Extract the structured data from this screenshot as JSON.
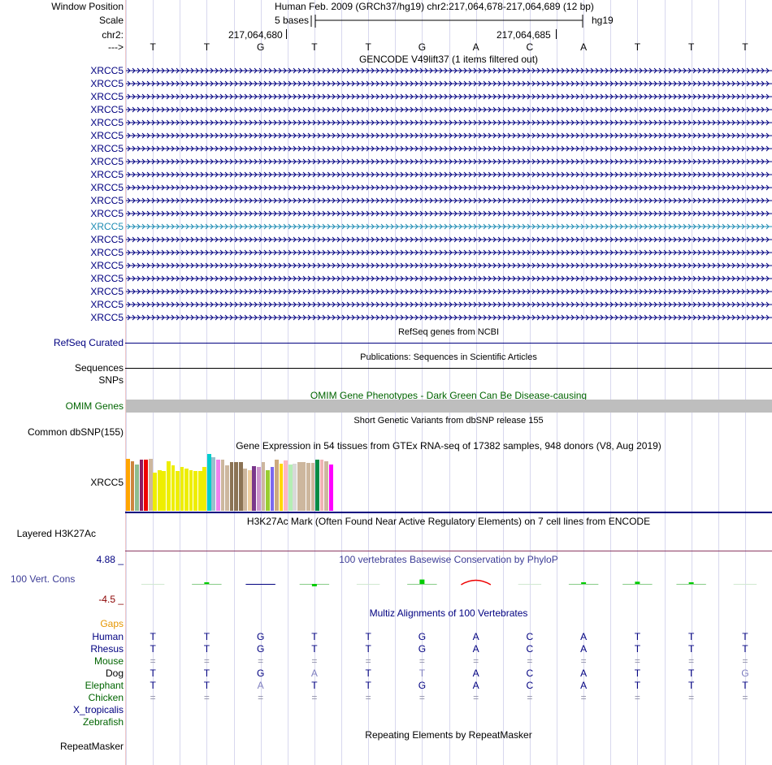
{
  "header": {
    "window_position_label": "Window Position",
    "scale_label": "Scale",
    "chrom_label": "chr2:",
    "strand_label": "--->",
    "assembly_position": "Human Feb. 2009 (GRCh37/hg19)   chr2:217,064,678-217,064,689 (12 bp)",
    "scale_text": "5 bases",
    "scale_assembly": "hg19",
    "coord_1": "217,064,680",
    "coord_2": "217,064,685"
  },
  "bases": [
    "T",
    "T",
    "G",
    "T",
    "T",
    "G",
    "A",
    "C",
    "A",
    "T",
    "T",
    "T"
  ],
  "gencode": {
    "title": "GENCODE V49lift37 (1 items filtered out)",
    "items": [
      "XRCC5",
      "XRCC5",
      "XRCC5",
      "XRCC5",
      "XRCC5",
      "XRCC5",
      "XRCC5",
      "XRCC5",
      "XRCC5",
      "XRCC5",
      "XRCC5",
      "XRCC5",
      "XRCC5",
      "XRCC5",
      "XRCC5",
      "XRCC5",
      "XRCC5",
      "XRCC5",
      "XRCC5",
      "XRCC5"
    ],
    "highlight_index": 12,
    "colors": {
      "normal": "#000080",
      "highlight": "#1e8cb4"
    }
  },
  "refseq": {
    "title": "RefSeq genes from NCBI",
    "label": "RefSeq Curated"
  },
  "publications": {
    "title": "Publications: Sequences in Scientific Articles",
    "label": "Sequences"
  },
  "snps": {
    "label": "SNPs"
  },
  "omim": {
    "title": "OMIM Gene Phenotypes - Dark Green Can Be Disease-causing",
    "label": "OMIM Genes"
  },
  "dbsnp": {
    "title": "Short Genetic Variants from dbSNP release 155",
    "label": "Common dbSNP(155)"
  },
  "gtex": {
    "title": "Gene Expression in 54 tissues from GTEx RNA-seq of 17382 samples, 948 donors (V8, Aug 2019)",
    "label": "XRCC5",
    "chart_data": {
      "type": "bar",
      "values": [
        66,
        63,
        59,
        65,
        65,
        66,
        48,
        51,
        50,
        63,
        58,
        50,
        56,
        53,
        51,
        50,
        50,
        56,
        72,
        68,
        65,
        65,
        58,
        62,
        62,
        62,
        53,
        51,
        57,
        55,
        62,
        51,
        55,
        65,
        60,
        64,
        59,
        60,
        62,
        62,
        61,
        61,
        65,
        65,
        63,
        59
      ],
      "colors": [
        "#ffa500",
        "#cd853f",
        "#8fbc8f",
        "#8b1c62",
        "#ee0000",
        "#cdb79e",
        "#eeee00",
        "#eeee00",
        "#eeee00",
        "#eeee00",
        "#eeee00",
        "#eeee00",
        "#eeee00",
        "#eeee00",
        "#eeee00",
        "#eeee00",
        "#eeee00",
        "#eeee00",
        "#00cdcd",
        "#9ac0cd",
        "#ee82ee",
        "#cdb79e",
        "#cdb79e",
        "#8b7355",
        "#8b7355",
        "#8b7355",
        "#cdb79e",
        "#eecfa1",
        "#7a378b",
        "#cd96cd",
        "#cdb79e",
        "#9acd32",
        "#7b68ee",
        "#cdaa7d",
        "#ffd700",
        "#ffb6c1",
        "#b4eeb4",
        "#d9d9d9",
        "#cdb79e",
        "#cdb79e",
        "#cdb79e",
        "#cdb79e",
        "#008b45",
        "#eeb4b4",
        "#cdb79e",
        "#ff00ff"
      ]
    }
  },
  "h3k27ac": {
    "title": "H3K27Ac Mark (Often Found Near Active Regulatory Elements) on 7 cell lines from ENCODE",
    "label": "Layered H3K27Ac"
  },
  "conservation": {
    "title": "100 vertebrates Basewise Conservation by PhyloP",
    "label": "100 Vert. Cons",
    "max_label": "4.88 _",
    "min_label": "-4.5 _",
    "scores": [
      0,
      0.15,
      -0.1,
      -0.5,
      0,
      0.9,
      -0.05,
      0,
      0.2,
      0.45,
      0.05,
      0
    ],
    "colors": {
      "pos": "#00cc00",
      "neg": "#ee0000",
      "neutral": "#000080"
    }
  },
  "multiz": {
    "title": "Multiz Alignments of 100 Vertebrates",
    "gaps_label": "Gaps",
    "species": [
      {
        "name": "Human",
        "seq": [
          "T",
          "T",
          "G",
          "T",
          "T",
          "G",
          "A",
          "C",
          "A",
          "T",
          "T",
          "T"
        ]
      },
      {
        "name": "Rhesus",
        "seq": [
          "T",
          "T",
          "G",
          "T",
          "T",
          "G",
          "A",
          "C",
          "A",
          "T",
          "T",
          "T"
        ]
      },
      {
        "name": "Mouse",
        "seq": [
          "=",
          "=",
          "=",
          "=",
          "=",
          "=",
          "=",
          "=",
          "=",
          "=",
          "=",
          "="
        ]
      },
      {
        "name": "Dog",
        "seq": [
          "T",
          "T",
          "G",
          "A",
          "T",
          "T",
          "A",
          "C",
          "A",
          "T",
          "T",
          "G"
        ]
      },
      {
        "name": "Elephant",
        "seq": [
          "T",
          "T",
          "A",
          "T",
          "T",
          "G",
          "A",
          "C",
          "A",
          "T",
          "T",
          "T"
        ]
      },
      {
        "name": "Chicken",
        "seq": [
          "=",
          "=",
          "=",
          "=",
          "=",
          "=",
          "=",
          "=",
          "=",
          "=",
          "=",
          "="
        ]
      },
      {
        "name": "X_tropicalis",
        "seq": [
          "",
          "",
          "",
          "",
          "",
          "",
          "",
          "",
          "",
          "",
          "",
          ""
        ]
      },
      {
        "name": "Zebrafish",
        "seq": [
          "",
          "",
          "",
          "",
          "",
          "",
          "",
          "",
          "",
          "",
          "",
          ""
        ]
      }
    ]
  },
  "repeatmasker": {
    "title": "Repeating Elements by RepeatMasker",
    "label": "RepeatMasker"
  }
}
